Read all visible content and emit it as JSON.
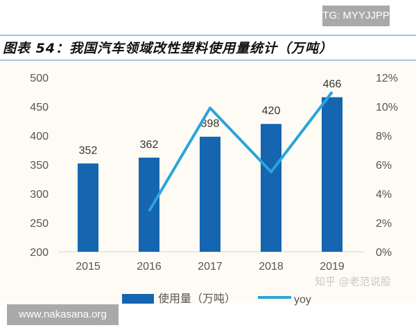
{
  "header": {
    "tag": "TG: MYYJJPP"
  },
  "footer": {
    "site": "www.nakasana.org",
    "credit": "知乎 @老范说股"
  },
  "chart_data": {
    "type": "bar",
    "title": "图表 54：我国汽车领域改性塑料使用量统计（万吨）",
    "categories": [
      "2015",
      "2016",
      "2017",
      "2018",
      "2019"
    ],
    "series": [
      {
        "name": "使用量（万吨）",
        "type": "bar",
        "axis": "left",
        "values": [
          352,
          362,
          398,
          420,
          466
        ],
        "color": "#1565b0"
      },
      {
        "name": "yoy",
        "type": "line",
        "axis": "right",
        "values": [
          null,
          2.8,
          9.9,
          5.5,
          11.0
        ],
        "color": "#2aa4dc"
      }
    ],
    "left_axis": {
      "ylim": [
        200,
        500
      ],
      "ticks": [
        "200",
        "250",
        "300",
        "350",
        "400",
        "450",
        "500"
      ]
    },
    "right_axis": {
      "ylim": [
        0,
        12
      ],
      "ticks": [
        "0%",
        "2%",
        "4%",
        "6%",
        "8%",
        "10%",
        "12%"
      ]
    },
    "legend": "bottom",
    "grid": false
  }
}
